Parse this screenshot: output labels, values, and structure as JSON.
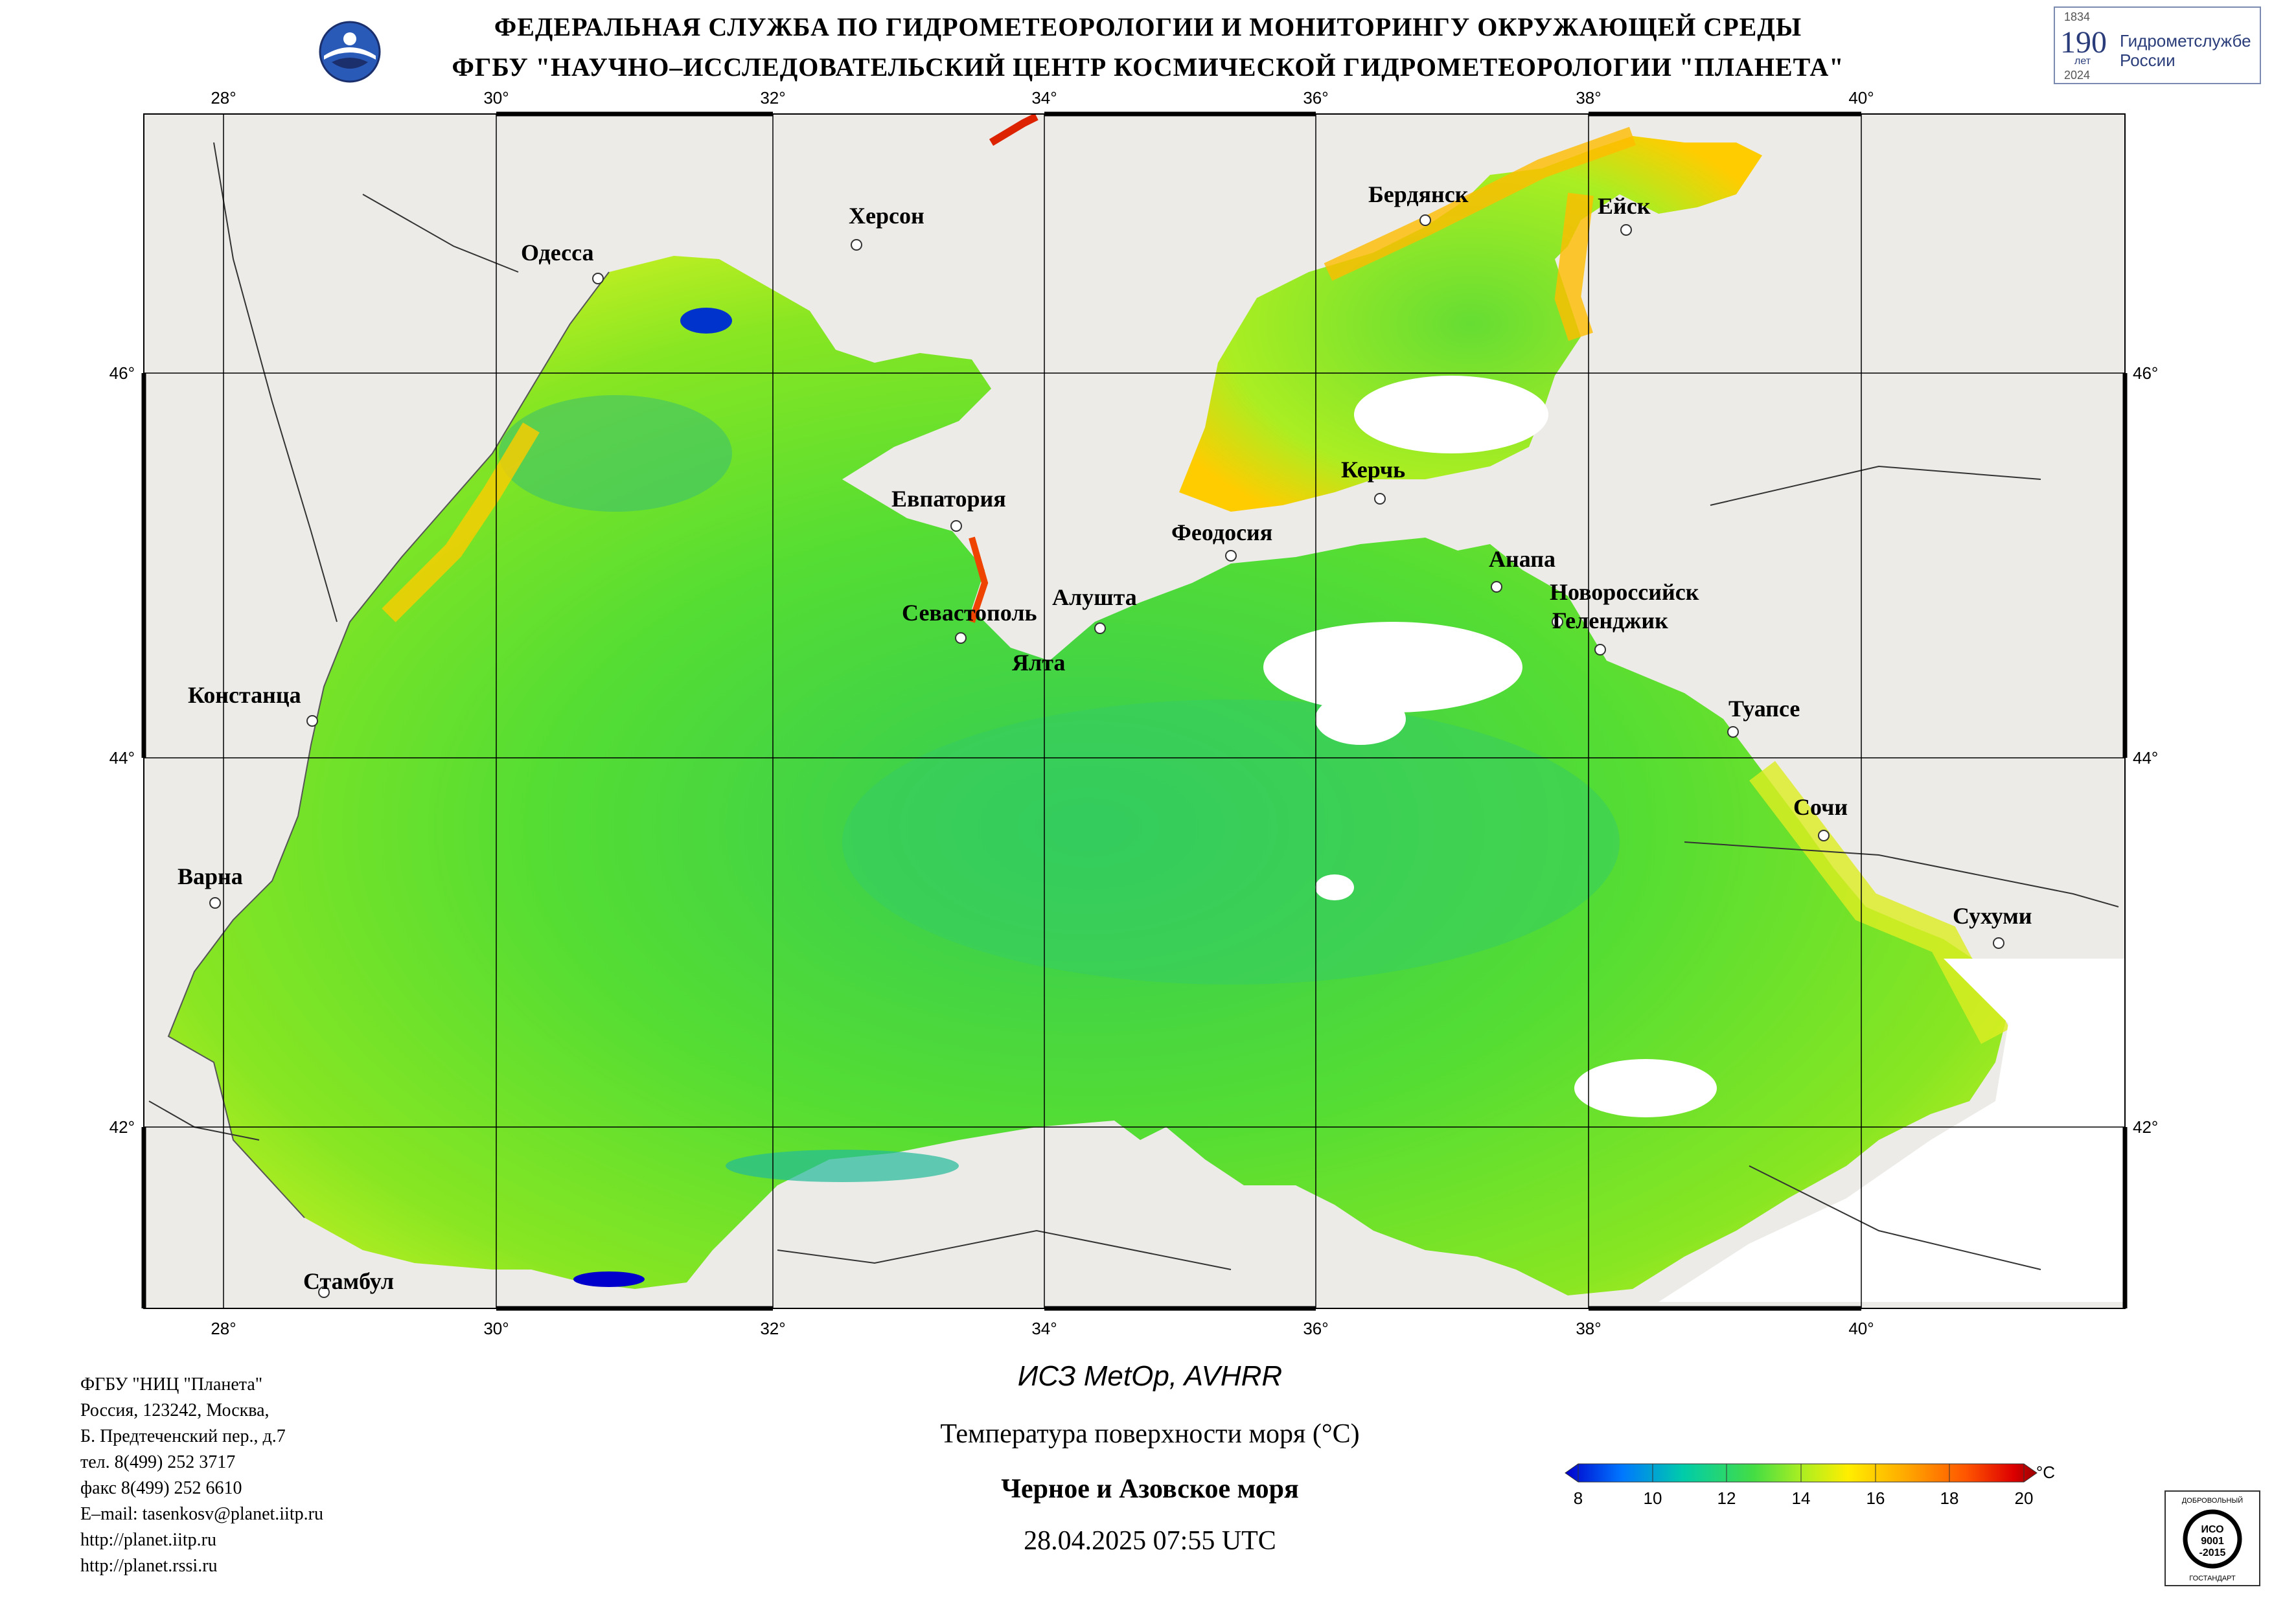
{
  "header": {
    "line1": "ФЕДЕРАЛЬНАЯ СЛУЖБА ПО ГИДРОМЕТЕОРОЛОГИИ И МОНИТОРИНГУ ОКРУЖАЮЩЕЙ СРЕДЫ",
    "line2": "ФГБУ \"НАУЧНО–ИССЛЕДОВАТЕЛЬСКИЙ ЦЕНТР КОСМИЧЕСКОЙ ГИДРОМЕТЕОРОЛОГИИ \"ПЛАНЕТА\""
  },
  "anniversary_logo": {
    "year_from": "1834",
    "number": "190",
    "unit": "лет",
    "year_to": "2024",
    "text_line1": "Гидрометслужбе",
    "text_line2": "России"
  },
  "map": {
    "lon_ticks": [
      "28°",
      "30°",
      "32°",
      "34°",
      "36°",
      "38°",
      "40°"
    ],
    "lat_ticks": [
      "46°",
      "44°",
      "42°"
    ],
    "cities": [
      {
        "name": "Одесса"
      },
      {
        "name": "Херсон"
      },
      {
        "name": "Бердянск"
      },
      {
        "name": "Ейск"
      },
      {
        "name": "Евпатория"
      },
      {
        "name": "Керчь"
      },
      {
        "name": "Феодосия"
      },
      {
        "name": "Анапа"
      },
      {
        "name": "Новороссийск"
      },
      {
        "name": "Геленджик"
      },
      {
        "name": "Севастополь"
      },
      {
        "name": "Алушта"
      },
      {
        "name": "Ялта"
      },
      {
        "name": "Констанца"
      },
      {
        "name": "Туапсе"
      },
      {
        "name": "Сочи"
      },
      {
        "name": "Варна"
      },
      {
        "name": "Сухуми"
      },
      {
        "name": "Стамбул"
      }
    ],
    "colors": {
      "land": "#ecebe7",
      "sea_dominant": "#66dd33",
      "cloud": "#ffffff",
      "grid": "#000000"
    }
  },
  "footer_address": [
    "ФГБУ \"НИЦ \"Планета\"",
    "Россия, 123242, Москва,",
    "Б. Предтеченский пер., д.7",
    "тел. 8(499) 252 3717",
    "факс 8(499) 252 6610",
    "E–mail: tasenkosv@planet.iitp.ru",
    "http://planet.iitp.ru",
    "http://planet.rssi.ru"
  ],
  "caption": {
    "satellite": "ИСЗ MetOp, AVHRR",
    "parameter": "Температура поверхности моря (°C)",
    "region": "Черное и Азовское моря",
    "datetime": "28.04.2025 07:55 UTC"
  },
  "colorbar": {
    "unit": "°C",
    "min": 8,
    "max": 20,
    "tick_labels": [
      "8",
      "10",
      "12",
      "14",
      "16",
      "18",
      "20"
    ],
    "colors": [
      "#0000cc",
      "#0077ff",
      "#00ccaa",
      "#44dd44",
      "#aaee22",
      "#ffee00",
      "#ffaa00",
      "#ff5500",
      "#dd0000",
      "#990000"
    ]
  },
  "iso_badge": {
    "top_text": "ДОБРОВОЛЬНЫЙ",
    "center_line1": "ИСО",
    "center_line2": "9001",
    "center_line3": "-2015",
    "bottom_text": "ГОСТАНДАРТ"
  }
}
